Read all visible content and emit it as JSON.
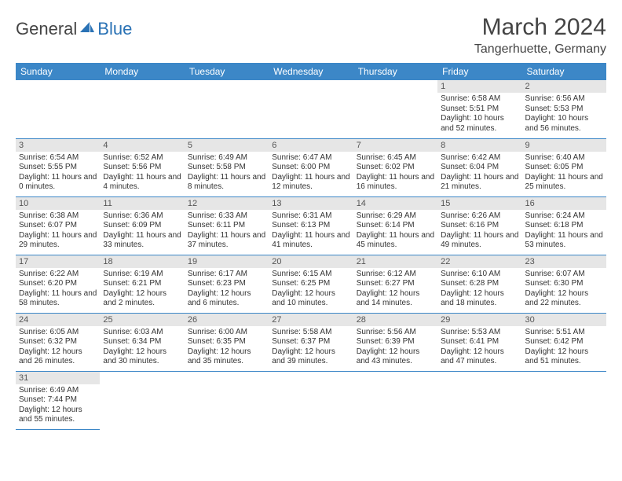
{
  "logo": {
    "text1": "General",
    "text2": "Blue"
  },
  "title": "March 2024",
  "location": "Tangerhuette, Germany",
  "colors": {
    "header_bg": "#3c87c7",
    "header_fg": "#ffffff",
    "daynum_bg": "#e6e6e6",
    "rule": "#3c87c7",
    "logo_blue": "#2a72b5"
  },
  "daysOfWeek": [
    "Sunday",
    "Monday",
    "Tuesday",
    "Wednesday",
    "Thursday",
    "Friday",
    "Saturday"
  ],
  "weeks": [
    [
      null,
      null,
      null,
      null,
      null,
      {
        "n": "1",
        "sr": "Sunrise: 6:58 AM",
        "ss": "Sunset: 5:51 PM",
        "dl": "Daylight: 10 hours and 52 minutes."
      },
      {
        "n": "2",
        "sr": "Sunrise: 6:56 AM",
        "ss": "Sunset: 5:53 PM",
        "dl": "Daylight: 10 hours and 56 minutes."
      }
    ],
    [
      {
        "n": "3",
        "sr": "Sunrise: 6:54 AM",
        "ss": "Sunset: 5:55 PM",
        "dl": "Daylight: 11 hours and 0 minutes."
      },
      {
        "n": "4",
        "sr": "Sunrise: 6:52 AM",
        "ss": "Sunset: 5:56 PM",
        "dl": "Daylight: 11 hours and 4 minutes."
      },
      {
        "n": "5",
        "sr": "Sunrise: 6:49 AM",
        "ss": "Sunset: 5:58 PM",
        "dl": "Daylight: 11 hours and 8 minutes."
      },
      {
        "n": "6",
        "sr": "Sunrise: 6:47 AM",
        "ss": "Sunset: 6:00 PM",
        "dl": "Daylight: 11 hours and 12 minutes."
      },
      {
        "n": "7",
        "sr": "Sunrise: 6:45 AM",
        "ss": "Sunset: 6:02 PM",
        "dl": "Daylight: 11 hours and 16 minutes."
      },
      {
        "n": "8",
        "sr": "Sunrise: 6:42 AM",
        "ss": "Sunset: 6:04 PM",
        "dl": "Daylight: 11 hours and 21 minutes."
      },
      {
        "n": "9",
        "sr": "Sunrise: 6:40 AM",
        "ss": "Sunset: 6:05 PM",
        "dl": "Daylight: 11 hours and 25 minutes."
      }
    ],
    [
      {
        "n": "10",
        "sr": "Sunrise: 6:38 AM",
        "ss": "Sunset: 6:07 PM",
        "dl": "Daylight: 11 hours and 29 minutes."
      },
      {
        "n": "11",
        "sr": "Sunrise: 6:36 AM",
        "ss": "Sunset: 6:09 PM",
        "dl": "Daylight: 11 hours and 33 minutes."
      },
      {
        "n": "12",
        "sr": "Sunrise: 6:33 AM",
        "ss": "Sunset: 6:11 PM",
        "dl": "Daylight: 11 hours and 37 minutes."
      },
      {
        "n": "13",
        "sr": "Sunrise: 6:31 AM",
        "ss": "Sunset: 6:13 PM",
        "dl": "Daylight: 11 hours and 41 minutes."
      },
      {
        "n": "14",
        "sr": "Sunrise: 6:29 AM",
        "ss": "Sunset: 6:14 PM",
        "dl": "Daylight: 11 hours and 45 minutes."
      },
      {
        "n": "15",
        "sr": "Sunrise: 6:26 AM",
        "ss": "Sunset: 6:16 PM",
        "dl": "Daylight: 11 hours and 49 minutes."
      },
      {
        "n": "16",
        "sr": "Sunrise: 6:24 AM",
        "ss": "Sunset: 6:18 PM",
        "dl": "Daylight: 11 hours and 53 minutes."
      }
    ],
    [
      {
        "n": "17",
        "sr": "Sunrise: 6:22 AM",
        "ss": "Sunset: 6:20 PM",
        "dl": "Daylight: 11 hours and 58 minutes."
      },
      {
        "n": "18",
        "sr": "Sunrise: 6:19 AM",
        "ss": "Sunset: 6:21 PM",
        "dl": "Daylight: 12 hours and 2 minutes."
      },
      {
        "n": "19",
        "sr": "Sunrise: 6:17 AM",
        "ss": "Sunset: 6:23 PM",
        "dl": "Daylight: 12 hours and 6 minutes."
      },
      {
        "n": "20",
        "sr": "Sunrise: 6:15 AM",
        "ss": "Sunset: 6:25 PM",
        "dl": "Daylight: 12 hours and 10 minutes."
      },
      {
        "n": "21",
        "sr": "Sunrise: 6:12 AM",
        "ss": "Sunset: 6:27 PM",
        "dl": "Daylight: 12 hours and 14 minutes."
      },
      {
        "n": "22",
        "sr": "Sunrise: 6:10 AM",
        "ss": "Sunset: 6:28 PM",
        "dl": "Daylight: 12 hours and 18 minutes."
      },
      {
        "n": "23",
        "sr": "Sunrise: 6:07 AM",
        "ss": "Sunset: 6:30 PM",
        "dl": "Daylight: 12 hours and 22 minutes."
      }
    ],
    [
      {
        "n": "24",
        "sr": "Sunrise: 6:05 AM",
        "ss": "Sunset: 6:32 PM",
        "dl": "Daylight: 12 hours and 26 minutes."
      },
      {
        "n": "25",
        "sr": "Sunrise: 6:03 AM",
        "ss": "Sunset: 6:34 PM",
        "dl": "Daylight: 12 hours and 30 minutes."
      },
      {
        "n": "26",
        "sr": "Sunrise: 6:00 AM",
        "ss": "Sunset: 6:35 PM",
        "dl": "Daylight: 12 hours and 35 minutes."
      },
      {
        "n": "27",
        "sr": "Sunrise: 5:58 AM",
        "ss": "Sunset: 6:37 PM",
        "dl": "Daylight: 12 hours and 39 minutes."
      },
      {
        "n": "28",
        "sr": "Sunrise: 5:56 AM",
        "ss": "Sunset: 6:39 PM",
        "dl": "Daylight: 12 hours and 43 minutes."
      },
      {
        "n": "29",
        "sr": "Sunrise: 5:53 AM",
        "ss": "Sunset: 6:41 PM",
        "dl": "Daylight: 12 hours and 47 minutes."
      },
      {
        "n": "30",
        "sr": "Sunrise: 5:51 AM",
        "ss": "Sunset: 6:42 PM",
        "dl": "Daylight: 12 hours and 51 minutes."
      }
    ],
    [
      {
        "n": "31",
        "sr": "Sunrise: 6:49 AM",
        "ss": "Sunset: 7:44 PM",
        "dl": "Daylight: 12 hours and 55 minutes."
      },
      null,
      null,
      null,
      null,
      null,
      null
    ]
  ]
}
